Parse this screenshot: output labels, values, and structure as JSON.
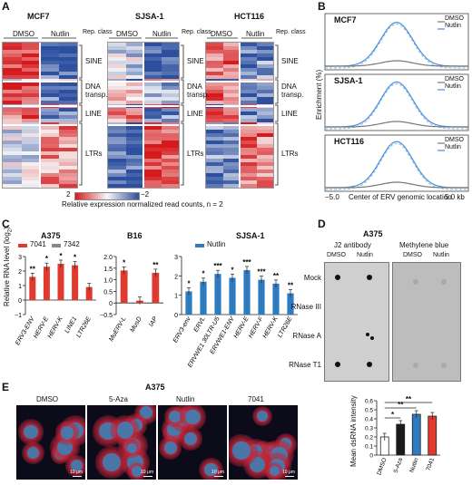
{
  "panels": {
    "A": "A",
    "B": "B",
    "C": "C",
    "D": "D",
    "E": "E"
  },
  "panelA": {
    "blocks": [
      {
        "title": "MCF7",
        "dmso": "DMSO",
        "nutlin": "Nutlin",
        "repclass": "Rep. class"
      },
      {
        "title": "SJSA-1",
        "dmso": "DMSO",
        "nutlin": "Nutlin",
        "repclass": "Rep. class"
      },
      {
        "title": "HCT116",
        "dmso": "DMSO",
        "nutlin": "Nutlin",
        "repclass": "Rep. class"
      }
    ],
    "classes": {
      "sine": "SINE",
      "dna1": "DNA",
      "dna2": "transp.",
      "line": "LINE",
      "ltrs": "LTRs"
    },
    "scale_max": "2",
    "scale_min": "−2",
    "colorbar_label": "Relative expression normalized read counts, n = 2",
    "colors": {
      "high": "#d7191c",
      "mid": "#f7f7f7",
      "low": "#2c4fa0"
    }
  },
  "panelB": {
    "ylabel": "Enrichment (%)",
    "xlabel_left": "−5.0",
    "xlabel_mid": "Center of ERV genomic location",
    "xlabel_right": "5.0 kb",
    "plots": [
      {
        "title": "MCF7",
        "legend_dmso": "DMSO",
        "legend_nutlin": "Nutlin"
      },
      {
        "title": "SJSA-1",
        "legend_dmso": "DMSO",
        "legend_nutlin": "Nutlin"
      },
      {
        "title": "HCT116",
        "legend_dmso": "DMSO",
        "legend_nutlin": "Nutlin"
      }
    ],
    "colors": {
      "dmso": "#777777",
      "nutlin": "#4a90d9"
    }
  },
  "panelC": {
    "ylabel": "Relative RNA level (log",
    "ylabel_sub": "2",
    "ylabel_end": ")",
    "a375": {
      "title": "A375",
      "legend1": "7041",
      "legend2": "7342",
      "yticks": [
        "3",
        "2",
        "1",
        "0",
        "−1"
      ],
      "genes": [
        "ERV3-ENV",
        "HERV-E",
        "HERV-K",
        "LINE1",
        "LTR26E"
      ],
      "values": [
        1.6,
        2.3,
        2.5,
        2.4,
        0.9
      ],
      "stars": [
        "**",
        "*",
        "*",
        "*",
        ""
      ]
    },
    "b16": {
      "title": "B16",
      "yticks": [
        "2.0",
        "1.5",
        "1.0",
        "0.5",
        "0",
        "−0.5"
      ],
      "genes": [
        "MuERV-L",
        "MusD",
        "IAP"
      ],
      "values": [
        1.4,
        0.1,
        1.3
      ],
      "stars": [
        "*",
        "",
        "**"
      ]
    },
    "sjsa": {
      "title": "SJSA-1",
      "legend": "Nutlin",
      "yticks": [
        "3",
        "2",
        "1",
        "0"
      ],
      "genes": [
        "ERV3-env",
        "ERVL",
        "ERVWE1 30LTR-U5",
        "ERVWE1-ENV",
        "HERV-E",
        "HERV-F",
        "HERV-K",
        "LTR26E"
      ],
      "values": [
        1.2,
        1.7,
        2.1,
        1.9,
        2.3,
        1.8,
        1.6,
        1.1
      ],
      "stars": [
        "*",
        "*",
        "***",
        "*",
        "***",
        "***",
        "**",
        "**"
      ]
    },
    "colors": {
      "red": "#e03a2f",
      "blue": "#2f7bbf"
    }
  },
  "panelD": {
    "title": "A375",
    "col1": "J2 antibody",
    "col2": "Methylene blue",
    "dmso": "DMSO",
    "nutlin": "Nutlin",
    "rows": [
      "Mock",
      "RNase III",
      "RNase A",
      "RNase T1"
    ]
  },
  "panelE": {
    "title": "A375",
    "images": [
      "DMSO",
      "5-Aza",
      "Nutlin",
      "7041"
    ],
    "scale": "10 μm",
    "ylabel": "Mean dsRNA intensity",
    "yticks": [
      "0.6",
      "0.5",
      "0.4",
      "0.3",
      "0.2",
      "0.1",
      "0"
    ],
    "bars": [
      "DMSO",
      "5-Aza",
      "Nutlin",
      "7041"
    ],
    "values": [
      0.2,
      0.34,
      0.45,
      0.43
    ],
    "sig": [
      "*",
      "**",
      "**"
    ],
    "colors": [
      "#ffffff",
      "#1a1a1a",
      "#2f7bbf",
      "#e03a2f"
    ]
  }
}
